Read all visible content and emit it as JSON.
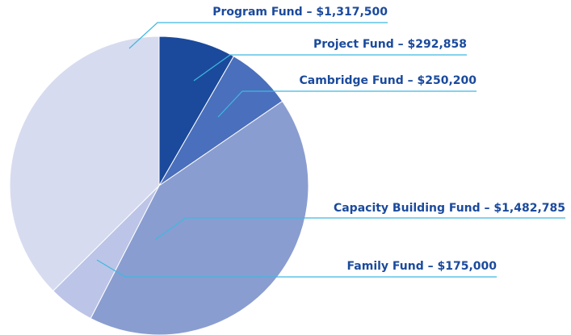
{
  "chart_data": {
    "type": "pie",
    "categories": [
      "Project Fund – $292,858",
      "Cambridge Fund – $250,200",
      "Capacity Building Fund – $1,482,785",
      "Family Fund – $175,000",
      "Program Fund – $1,317,500"
    ],
    "values": [
      292858,
      250200,
      1482785,
      175000,
      1317500
    ],
    "colors": [
      "#1b4a9c",
      "#4a6fbc",
      "#8a9dd0",
      "#bcc5e7",
      "#d7dbef"
    ]
  }
}
